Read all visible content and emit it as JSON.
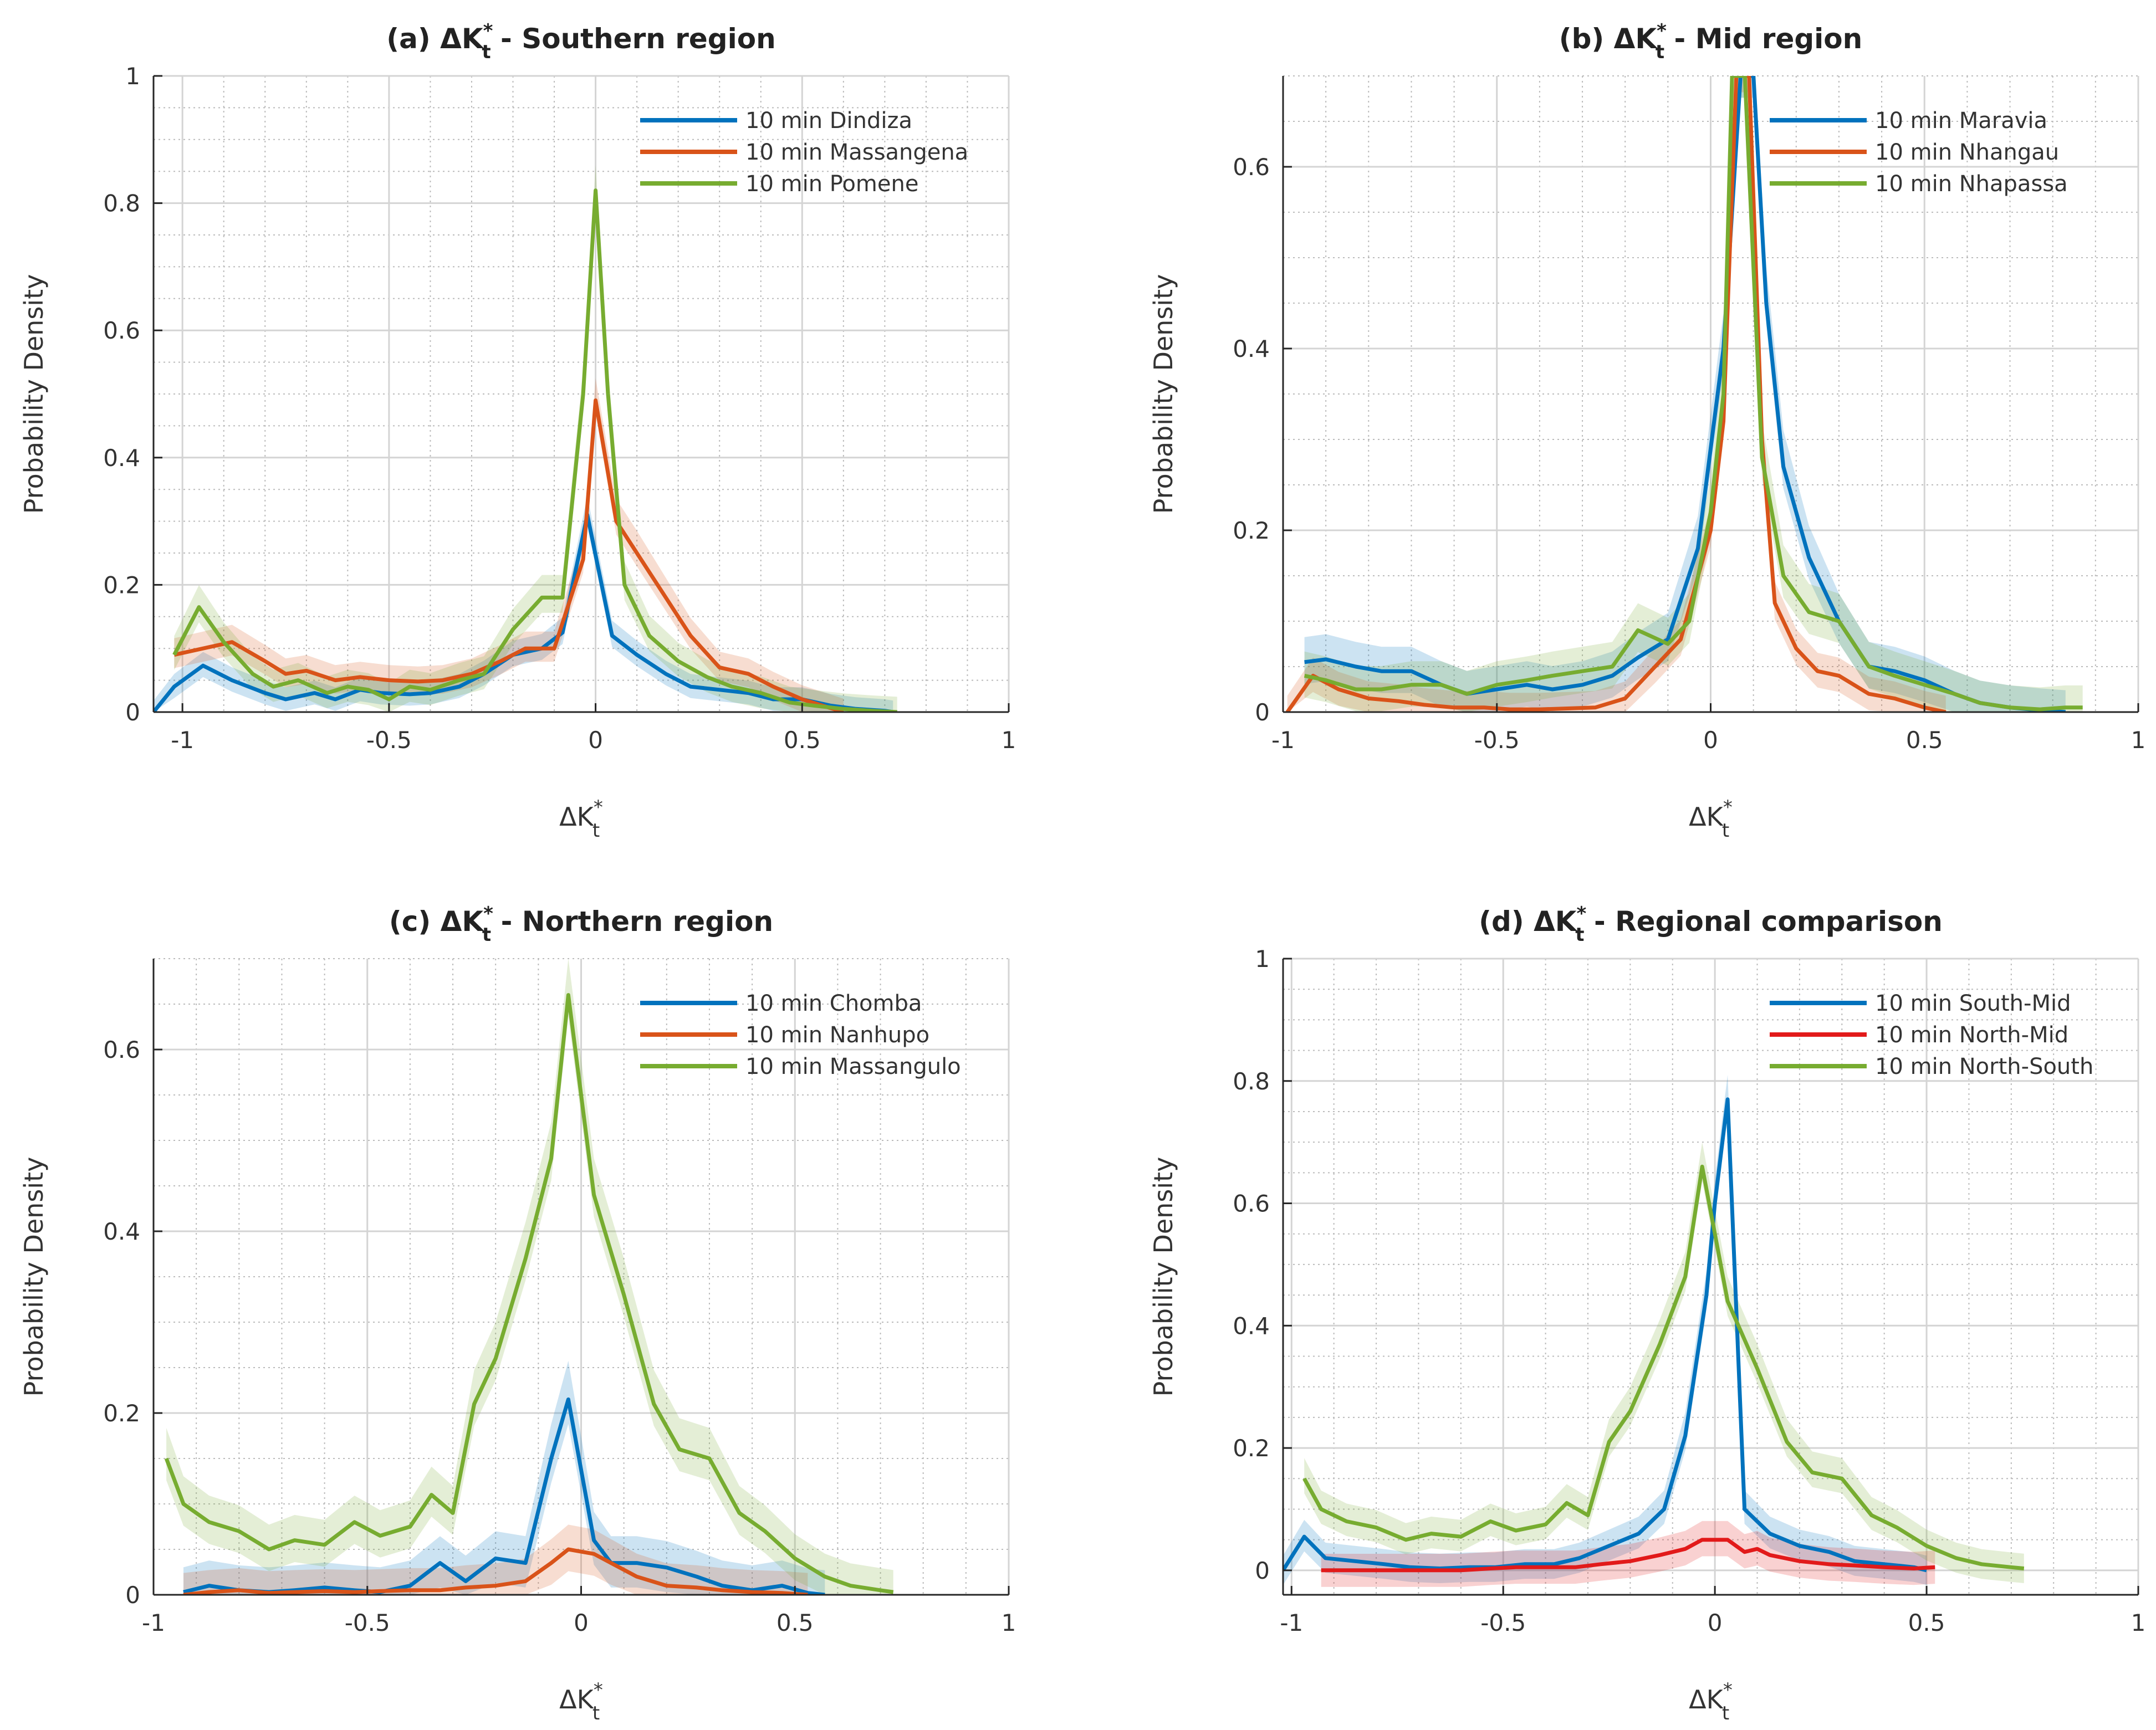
{
  "chart_data": [
    {
      "type": "line",
      "panel": "a",
      "title_prefix": "(a) ΔK",
      "title_suffix": " - Southern region",
      "xlabel": "ΔK",
      "ylabel": "Probability Density",
      "xlim": [
        -1.07,
        1
      ],
      "ylim": [
        0,
        1
      ],
      "xticks": [
        -1,
        -0.5,
        0,
        0.5,
        1
      ],
      "xtick_labels": [
        "-1",
        "-0.5",
        "0",
        "0.5",
        "1"
      ],
      "yticks": [
        0,
        0.2,
        0.4,
        0.6,
        0.8,
        1
      ],
      "ytick_labels": [
        "0",
        "0.2",
        "0.4",
        "0.6",
        "0.8",
        "1"
      ],
      "legend_position": "top-right",
      "series": [
        {
          "name": "10 min Dindiza",
          "color": "#0072BD",
          "x": [
            -1.07,
            -1.02,
            -0.95,
            -0.88,
            -0.8,
            -0.75,
            -0.68,
            -0.63,
            -0.57,
            -0.52,
            -0.45,
            -0.4,
            -0.33,
            -0.27,
            -0.2,
            -0.13,
            -0.08,
            -0.02,
            0.04,
            0.1,
            0.17,
            0.23,
            0.3,
            0.37,
            0.43,
            0.5,
            0.57,
            0.63,
            0.7,
            0.72
          ],
          "y": [
            0.0,
            0.04,
            0.073,
            0.05,
            0.03,
            0.02,
            0.03,
            0.02,
            0.035,
            0.03,
            0.028,
            0.03,
            0.04,
            0.06,
            0.09,
            0.1,
            0.125,
            0.31,
            0.12,
            0.09,
            0.06,
            0.04,
            0.035,
            0.03,
            0.02,
            0.02,
            0.01,
            0.005,
            0.002,
            0.0
          ],
          "band": 0.03
        },
        {
          "name": "10 min Massangena",
          "color": "#D95319",
          "x": [
            -1.02,
            -0.95,
            -0.88,
            -0.8,
            -0.75,
            -0.7,
            -0.63,
            -0.57,
            -0.5,
            -0.43,
            -0.37,
            -0.3,
            -0.23,
            -0.17,
            -0.1,
            -0.03,
            0.0,
            0.05,
            0.1,
            0.17,
            0.23,
            0.3,
            0.37,
            0.43,
            0.5,
            0.55,
            0.6
          ],
          "y": [
            0.09,
            0.1,
            0.11,
            0.08,
            0.06,
            0.065,
            0.05,
            0.055,
            0.05,
            0.048,
            0.05,
            0.06,
            0.08,
            0.1,
            0.1,
            0.24,
            0.49,
            0.3,
            0.25,
            0.18,
            0.12,
            0.07,
            0.06,
            0.04,
            0.02,
            0.01,
            0.0
          ],
          "band": 0.035
        },
        {
          "name": "10 min Pomene",
          "color": "#77AC30",
          "x": [
            -1.02,
            -0.96,
            -0.9,
            -0.83,
            -0.78,
            -0.72,
            -0.65,
            -0.6,
            -0.55,
            -0.5,
            -0.45,
            -0.4,
            -0.33,
            -0.27,
            -0.2,
            -0.13,
            -0.08,
            -0.03,
            0.0,
            0.03,
            0.07,
            0.13,
            0.2,
            0.27,
            0.33,
            0.4,
            0.47,
            0.53,
            0.6,
            0.67,
            0.73
          ],
          "y": [
            0.09,
            0.165,
            0.11,
            0.06,
            0.04,
            0.05,
            0.03,
            0.04,
            0.035,
            0.02,
            0.04,
            0.035,
            0.05,
            0.06,
            0.13,
            0.18,
            0.18,
            0.5,
            0.82,
            0.5,
            0.2,
            0.12,
            0.08,
            0.055,
            0.04,
            0.03,
            0.015,
            0.01,
            0.005,
            0.002,
            0.0
          ],
          "band": 0.04
        }
      ]
    },
    {
      "type": "line",
      "panel": "b",
      "title_prefix": "(b) ΔK",
      "title_suffix": " - Mid region",
      "xlabel": "ΔK",
      "ylabel": "Probability Density",
      "xlim": [
        -1,
        1
      ],
      "ylim": [
        0,
        0.7
      ],
      "xticks": [
        -1,
        -0.5,
        0,
        0.5,
        1
      ],
      "xtick_labels": [
        "-1",
        "-0.5",
        "0",
        "0.5",
        "1"
      ],
      "yticks": [
        0,
        0.2,
        0.4,
        0.6
      ],
      "ytick_labels": [
        "0",
        "0.2",
        "0.4",
        "0.6"
      ],
      "legend_position": "top-right",
      "series": [
        {
          "name": "10 min Maravia",
          "color": "#0072BD",
          "x": [
            -0.95,
            -0.9,
            -0.83,
            -0.77,
            -0.7,
            -0.63,
            -0.57,
            -0.5,
            -0.43,
            -0.37,
            -0.3,
            -0.23,
            -0.17,
            -0.1,
            -0.03,
            0.03,
            0.07,
            0.1,
            0.13,
            0.17,
            0.23,
            0.3,
            0.37,
            0.43,
            0.5,
            0.57,
            0.63,
            0.7,
            0.77,
            0.83
          ],
          "y": [
            0.055,
            0.058,
            0.05,
            0.045,
            0.045,
            0.03,
            0.02,
            0.025,
            0.03,
            0.025,
            0.03,
            0.04,
            0.06,
            0.08,
            0.18,
            0.4,
            0.7,
            0.7,
            0.45,
            0.27,
            0.17,
            0.1,
            0.05,
            0.045,
            0.035,
            0.02,
            0.01,
            0.005,
            0.002,
            0.0
          ],
          "band": 0.04
        },
        {
          "name": "10 min Nhangau",
          "color": "#D95319",
          "x": [
            -0.99,
            -0.93,
            -0.87,
            -0.8,
            -0.73,
            -0.67,
            -0.6,
            -0.53,
            -0.47,
            -0.4,
            -0.33,
            -0.27,
            -0.2,
            -0.13,
            -0.07,
            0.0,
            0.03,
            0.06,
            0.09,
            0.12,
            0.15,
            0.2,
            0.25,
            0.3,
            0.37,
            0.43,
            0.5,
            0.55
          ],
          "y": [
            0.0,
            0.04,
            0.025,
            0.015,
            0.012,
            0.008,
            0.005,
            0.005,
            0.003,
            0.003,
            0.004,
            0.005,
            0.015,
            0.05,
            0.08,
            0.2,
            0.32,
            0.7,
            0.7,
            0.3,
            0.12,
            0.07,
            0.045,
            0.04,
            0.02,
            0.015,
            0.005,
            0.0
          ],
          "band": 0.03
        },
        {
          "name": "10 min Nhapassa",
          "color": "#77AC30",
          "x": [
            -0.95,
            -0.9,
            -0.83,
            -0.77,
            -0.7,
            -0.63,
            -0.57,
            -0.5,
            -0.43,
            -0.37,
            -0.3,
            -0.23,
            -0.17,
            -0.1,
            -0.05,
            0.0,
            0.03,
            0.05,
            0.08,
            0.12,
            0.17,
            0.23,
            0.3,
            0.37,
            0.43,
            0.5,
            0.57,
            0.63,
            0.7,
            0.77,
            0.83,
            0.87
          ],
          "y": [
            0.04,
            0.035,
            0.025,
            0.025,
            0.03,
            0.03,
            0.02,
            0.03,
            0.035,
            0.04,
            0.045,
            0.05,
            0.09,
            0.075,
            0.1,
            0.22,
            0.35,
            0.7,
            0.7,
            0.28,
            0.15,
            0.11,
            0.1,
            0.05,
            0.04,
            0.03,
            0.02,
            0.01,
            0.005,
            0.003,
            0.005,
            0.005
          ],
          "band": 0.04
        }
      ]
    },
    {
      "type": "line",
      "panel": "c",
      "title_prefix": "(c) ΔK",
      "title_suffix": " - Northern region",
      "xlabel": "ΔK",
      "ylabel": "Probability Density",
      "xlim": [
        -1,
        1
      ],
      "ylim": [
        0,
        0.7
      ],
      "xticks": [
        -1,
        -0.5,
        0,
        0.5,
        1
      ],
      "xtick_labels": [
        "-1",
        "-0.5",
        "0",
        "0.5",
        "1"
      ],
      "yticks": [
        0,
        0.2,
        0.4,
        0.6
      ],
      "ytick_labels": [
        "0",
        "0.2",
        "0.4",
        "0.6"
      ],
      "legend_position": "top-right",
      "series": [
        {
          "name": "10 min Chomba",
          "color": "#0072BD",
          "x": [
            -0.93,
            -0.87,
            -0.8,
            -0.73,
            -0.67,
            -0.6,
            -0.53,
            -0.47,
            -0.4,
            -0.33,
            -0.27,
            -0.2,
            -0.13,
            -0.07,
            -0.03,
            0.03,
            0.07,
            0.13,
            0.2,
            0.27,
            0.33,
            0.4,
            0.47,
            0.53,
            0.57
          ],
          "y": [
            0.003,
            0.01,
            0.005,
            0.003,
            0.005,
            0.008,
            0.005,
            0.003,
            0.01,
            0.035,
            0.015,
            0.04,
            0.035,
            0.15,
            0.215,
            0.06,
            0.035,
            0.035,
            0.03,
            0.02,
            0.01,
            0.005,
            0.01,
            0.002,
            0.0
          ],
          "band": 0.045
        },
        {
          "name": "10 min Nanhupo",
          "color": "#D95319",
          "x": [
            -0.93,
            -0.87,
            -0.8,
            -0.73,
            -0.67,
            -0.6,
            -0.53,
            -0.47,
            -0.4,
            -0.33,
            -0.27,
            -0.2,
            -0.13,
            -0.07,
            -0.03,
            0.03,
            0.07,
            0.13,
            0.2,
            0.27,
            0.33,
            0.4,
            0.47,
            0.53
          ],
          "y": [
            0.0,
            0.003,
            0.005,
            0.002,
            0.003,
            0.004,
            0.003,
            0.004,
            0.005,
            0.005,
            0.008,
            0.01,
            0.015,
            0.035,
            0.05,
            0.045,
            0.035,
            0.02,
            0.01,
            0.008,
            0.005,
            0.003,
            0.002,
            0.0
          ],
          "band": 0.04
        },
        {
          "name": "10 min Massangulo",
          "color": "#77AC30",
          "x": [
            -0.97,
            -0.93,
            -0.87,
            -0.8,
            -0.73,
            -0.67,
            -0.6,
            -0.53,
            -0.47,
            -0.4,
            -0.35,
            -0.3,
            -0.25,
            -0.2,
            -0.13,
            -0.07,
            -0.03,
            0.03,
            0.1,
            0.17,
            0.23,
            0.3,
            0.37,
            0.43,
            0.5,
            0.57,
            0.63,
            0.7,
            0.73
          ],
          "y": [
            0.15,
            0.1,
            0.08,
            0.07,
            0.05,
            0.06,
            0.055,
            0.08,
            0.065,
            0.075,
            0.11,
            0.09,
            0.21,
            0.26,
            0.37,
            0.48,
            0.66,
            0.44,
            0.33,
            0.21,
            0.16,
            0.15,
            0.09,
            0.07,
            0.04,
            0.02,
            0.01,
            0.005,
            0.003
          ],
          "band": 0.04
        }
      ]
    },
    {
      "type": "line",
      "panel": "d",
      "title_prefix": "(d) ΔK",
      "title_suffix": " - Regional comparison",
      "xlabel": "ΔK",
      "ylabel": "Probability Density",
      "xlim": [
        -1.02,
        1
      ],
      "ylim": [
        -0.04,
        1
      ],
      "xticks": [
        -1,
        -0.5,
        0,
        0.5,
        1
      ],
      "xtick_labels": [
        "-1",
        "-0.5",
        "0",
        "0.5",
        "1"
      ],
      "yticks": [
        0,
        0.2,
        0.4,
        0.6,
        0.8,
        1
      ],
      "ytick_labels": [
        "0",
        "0.2",
        "0.4",
        "0.6",
        "0.8",
        "1"
      ],
      "legend_position": "top-right",
      "series": [
        {
          "name": "10 min South-Mid",
          "color": "#0072BD",
          "x": [
            -1.02,
            -0.97,
            -0.92,
            -0.85,
            -0.78,
            -0.72,
            -0.65,
            -0.58,
            -0.52,
            -0.45,
            -0.38,
            -0.32,
            -0.25,
            -0.18,
            -0.12,
            -0.07,
            -0.02,
            0.0,
            0.03,
            0.07,
            0.13,
            0.2,
            0.27,
            0.33,
            0.4,
            0.47,
            0.5
          ],
          "y": [
            0.0,
            0.055,
            0.02,
            0.015,
            0.01,
            0.005,
            0.003,
            0.005,
            0.005,
            0.01,
            0.01,
            0.02,
            0.04,
            0.06,
            0.1,
            0.22,
            0.45,
            0.6,
            0.77,
            0.1,
            0.06,
            0.04,
            0.03,
            0.015,
            0.01,
            0.005,
            0.0
          ],
          "band": 0.04
        },
        {
          "name": "10 min North-Mid",
          "color": "#E21A1A",
          "x": [
            -0.93,
            -0.87,
            -0.8,
            -0.73,
            -0.67,
            -0.6,
            -0.53,
            -0.47,
            -0.4,
            -0.33,
            -0.27,
            -0.2,
            -0.13,
            -0.07,
            -0.03,
            0.03,
            0.07,
            0.1,
            0.13,
            0.2,
            0.27,
            0.33,
            0.4,
            0.47,
            0.52
          ],
          "y": [
            0.0,
            0.0,
            0.0,
            0.0,
            0.0,
            0.0,
            0.003,
            0.005,
            0.005,
            0.005,
            0.01,
            0.015,
            0.025,
            0.035,
            0.05,
            0.05,
            0.03,
            0.035,
            0.025,
            0.015,
            0.01,
            0.008,
            0.005,
            0.003,
            0.005
          ],
          "band": 0.045
        },
        {
          "name": "10 min North-South",
          "color": "#77AC30",
          "x": [
            -0.97,
            -0.93,
            -0.87,
            -0.8,
            -0.73,
            -0.67,
            -0.6,
            -0.53,
            -0.47,
            -0.4,
            -0.35,
            -0.3,
            -0.25,
            -0.2,
            -0.13,
            -0.07,
            -0.03,
            0.03,
            0.1,
            0.17,
            0.23,
            0.3,
            0.37,
            0.43,
            0.5,
            0.57,
            0.63,
            0.7,
            0.73
          ],
          "y": [
            0.15,
            0.1,
            0.08,
            0.07,
            0.05,
            0.06,
            0.055,
            0.08,
            0.065,
            0.075,
            0.11,
            0.09,
            0.21,
            0.26,
            0.37,
            0.48,
            0.66,
            0.44,
            0.33,
            0.21,
            0.16,
            0.15,
            0.09,
            0.07,
            0.04,
            0.02,
            0.01,
            0.005,
            0.003
          ],
          "band": 0.04
        }
      ]
    }
  ]
}
